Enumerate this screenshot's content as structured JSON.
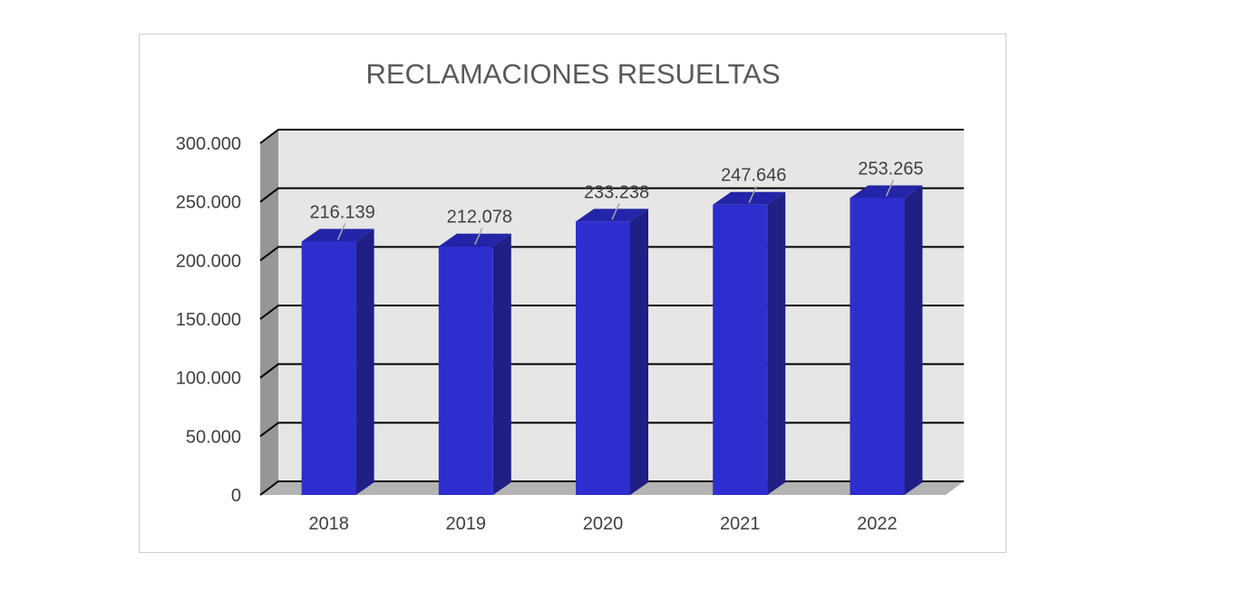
{
  "chart_data": {
    "type": "bar",
    "title": "RECLAMACIONES RESUELTAS",
    "categories": [
      "2018",
      "2019",
      "2020",
      "2021",
      "2022"
    ],
    "values": [
      216139,
      212078,
      233238,
      247646,
      253265
    ],
    "value_labels": [
      "216.139",
      "212.078",
      "233.238",
      "247.646",
      "253.265"
    ],
    "ylim": [
      0,
      300000
    ],
    "yticks": [
      0,
      50000,
      100000,
      150000,
      200000,
      250000,
      300000
    ],
    "ytick_labels": [
      "0",
      "50.000",
      "100.000",
      "150.000",
      "200.000",
      "250.000",
      "300.000"
    ],
    "grid": true,
    "legend": "none",
    "style": "3d-column",
    "colors": {
      "bar_front": "#2e2ecf",
      "bar_side": "#1f1f85",
      "bar_top": "#2424a8",
      "wall": "#e6e6e6",
      "side_wall": "#969696",
      "floor": "#b3b3b3",
      "grid": "#000000"
    }
  }
}
